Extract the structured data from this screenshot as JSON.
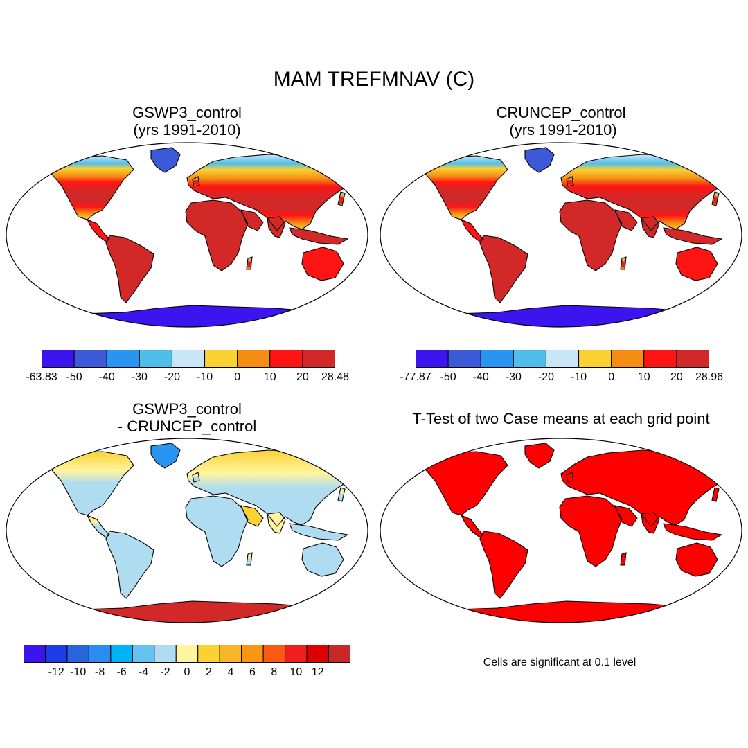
{
  "title": "MAM TREFMNAV (C)",
  "panels": {
    "gswp3": {
      "title": "GSWP3_control\n(yrs 1991-2010)"
    },
    "cruncep": {
      "title": "CRUNCEP_control\n (yrs 1991-2010)"
    },
    "diff": {
      "title": "GSWP3_control\n- CRUNCEP_control"
    },
    "ttest": {
      "title": "T-Test of two Case means at each grid point",
      "note": "Cells are significant at 0.1 level"
    }
  },
  "colorbars": {
    "gswp3": {
      "colors": [
        "#3c14f0",
        "#3c5ad7",
        "#2896f0",
        "#50beeb",
        "#c8e6f5",
        "#fad232",
        "#f58c14",
        "#ff1414",
        "#d22828"
      ],
      "labels": [
        "-63.83",
        "-50",
        "-40",
        "-30",
        "-20",
        "-10",
        "0",
        "10",
        "20",
        "28.48"
      ]
    },
    "cruncep": {
      "colors": [
        "#3c14f0",
        "#3c5ad7",
        "#2896f0",
        "#50beeb",
        "#c8e6f5",
        "#fad232",
        "#f58c14",
        "#ff1414",
        "#d22828"
      ],
      "labels": [
        "-77.87",
        "-50",
        "-40",
        "-30",
        "-20",
        "-10",
        "0",
        "10",
        "20",
        "28.96"
      ]
    },
    "diff": {
      "colors": [
        "#3c14f0",
        "#1e3ce6",
        "#2864dc",
        "#288cf0",
        "#00b4f5",
        "#64c3f0",
        "#afdcf0",
        "#fff5a0",
        "#fad232",
        "#fab428",
        "#fa9614",
        "#fa5a14",
        "#f01e1e",
        "#dc0000",
        "#c82828"
      ],
      "labels": [
        "-12",
        "-10",
        "-8",
        "-6",
        "-4",
        "-2",
        "0",
        "2",
        "4",
        "6",
        "8",
        "10",
        "12"
      ]
    }
  }
}
